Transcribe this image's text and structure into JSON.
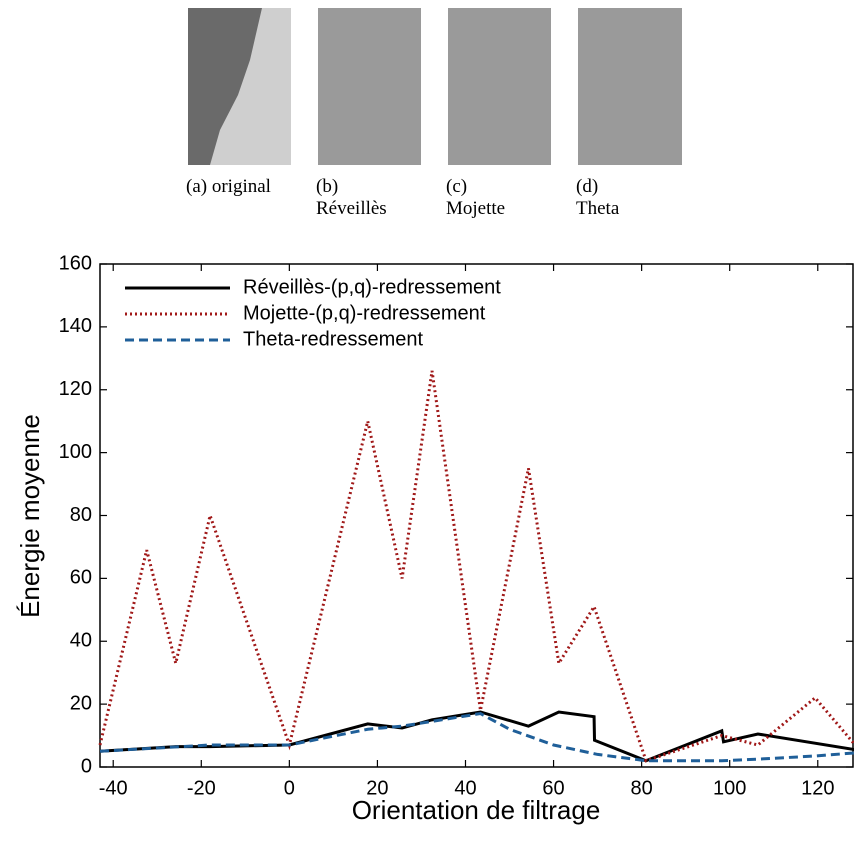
{
  "subfigures": [
    "(a) original",
    "(b) Réveillès",
    "(c) Mojette",
    "(d) Theta"
  ],
  "chart_data": {
    "type": "line",
    "xlabel": "Orientation de filtrage",
    "ylabel": "Énergie moyenne",
    "xlim": [
      -43,
      128
    ],
    "ylim": [
      0,
      160
    ],
    "xticks": [
      -40,
      -20,
      0,
      20,
      40,
      60,
      80,
      100,
      120
    ],
    "yticks": [
      0,
      20,
      40,
      60,
      80,
      100,
      120,
      140,
      160
    ],
    "legend": "upper left",
    "series": [
      {
        "name": "Réveillès-(p,q)-redressement",
        "color": "#000000",
        "dash": "solid",
        "x": [
          -43,
          -25.8,
          -18,
          0,
          17.8,
          25.6,
          32.4,
          43.4,
          54.3,
          61.2,
          69.2,
          69.3,
          81,
          98.2,
          98.6,
          106.4,
          128.5
        ],
        "values": [
          5,
          6.5,
          6.5,
          7,
          13.7,
          12.4,
          15,
          17.5,
          13,
          17.5,
          16,
          8.5,
          2,
          11.5,
          8,
          10.5,
          5.5
        ]
      },
      {
        "name": "Mojette-(p,q)-redressement",
        "color": "#a01818",
        "dash": "dotted",
        "x": [
          -43,
          -32.4,
          -25.8,
          -18,
          0,
          17.8,
          25.6,
          32.4,
          43.4,
          54.3,
          61.2,
          69.2,
          81,
          98.2,
          106.4,
          119.4,
          128.5
        ],
        "values": [
          7,
          69,
          33,
          80,
          7,
          110,
          60,
          126,
          18,
          95,
          33,
          51,
          2,
          10,
          7,
          22,
          7
        ]
      },
      {
        "name": "Theta-redressement",
        "color": "#1f5f99",
        "dash": "dashed",
        "x": [
          -43,
          -18,
          0,
          17.8,
          25.6,
          32.4,
          43.4,
          50,
          60,
          70,
          81,
          98.2,
          106.4,
          119.4,
          128.5
        ],
        "values": [
          5,
          7,
          7,
          12,
          13,
          14.5,
          17,
          12,
          7,
          4,
          2,
          2,
          2.5,
          3.5,
          4.5
        ]
      }
    ]
  }
}
